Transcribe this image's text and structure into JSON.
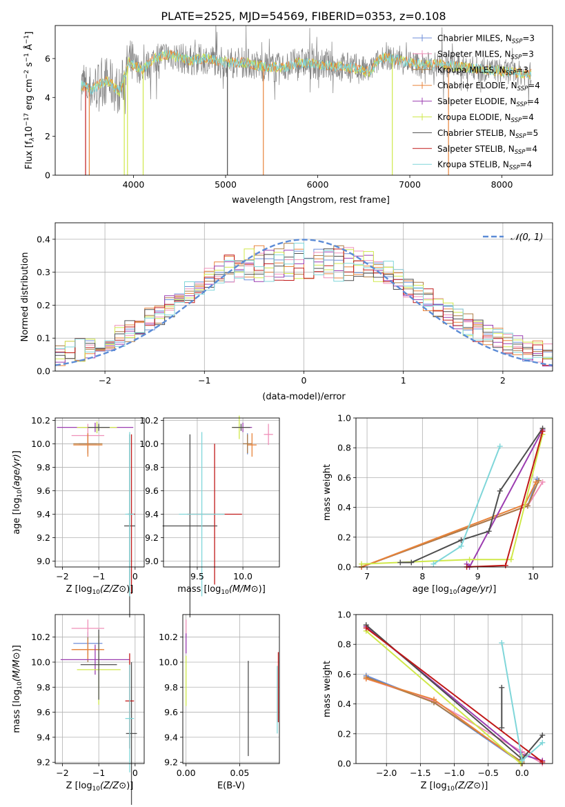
{
  "figure": {
    "title": "PLATE=2525, MJD=54569, FIBERID=0353, z=0.108"
  },
  "colors": {
    "chabrier_miles": "#6c8ed9",
    "salpeter_miles": "#ef8fb8",
    "kroupa_miles": "#ad7c46",
    "chabrier_elodie": "#e8833a",
    "salpeter_elodie": "#9b3cb0",
    "kroupa_elodie": "#cfe84a",
    "chabrier_stelib": "#4d4d4d",
    "salpeter_stelib": "#c01818",
    "kroupa_stelib": "#7fd6d9",
    "data": "#808080",
    "normal": "#5b8bd6"
  },
  "legend": [
    {
      "label": "Chabrier MILES, N",
      "sub": "SSP",
      "eq": "=3",
      "color_key": "chabrier_miles"
    },
    {
      "label": "Salpeter MILES, N",
      "sub": "SSP",
      "eq": "=3",
      "color_key": "salpeter_miles"
    },
    {
      "label": "Kroupa MILES, N",
      "sub": "SSP",
      "eq": "=3",
      "color_key": "kroupa_miles"
    },
    {
      "label": "Chabrier ELODIE, N",
      "sub": "SSP",
      "eq": "=4",
      "color_key": "chabrier_elodie"
    },
    {
      "label": "Salpeter ELODIE, N",
      "sub": "SSP",
      "eq": "=4",
      "color_key": "salpeter_elodie"
    },
    {
      "label": "Kroupa ELODIE, N",
      "sub": "SSP",
      "eq": "=4",
      "color_key": "kroupa_elodie"
    },
    {
      "label": "Chabrier STELIB, N",
      "sub": "SSP",
      "eq": "=5",
      "color_key": "chabrier_stelib"
    },
    {
      "label": "Salpeter STELIB, N",
      "sub": "SSP",
      "eq": "=4",
      "color_key": "salpeter_stelib"
    },
    {
      "label": "Kroupa STELIB, N",
      "sub": "SSP",
      "eq": "=4",
      "color_key": "kroupa_stelib"
    }
  ],
  "chart_data": [
    {
      "id": "spectrum",
      "type": "line",
      "xlabel": "wavelength [Angstrom, rest frame]",
      "ylabel": "Flux [f",
      "xlim": [
        3150,
        8550
      ],
      "ylim": [
        0,
        7.7
      ],
      "xticks": [
        4000,
        5000,
        6000,
        7000,
        8000
      ],
      "yticks": [
        0,
        2,
        4,
        6
      ],
      "grid": false,
      "legend_position": "right",
      "continuum_x": [
        3450,
        3550,
        3700,
        3850,
        3950,
        4100,
        4250,
        4400,
        4600,
        4800,
        5000,
        5200,
        5400,
        5600,
        5800,
        6000,
        6200,
        6400,
        6550,
        6700,
        6900,
        7100,
        7300,
        7500,
        7700,
        7900,
        8100,
        8300
      ],
      "continuum_y": [
        4.6,
        4.4,
        4.9,
        4.3,
        5.8,
        5.4,
        6.1,
        6.2,
        5.9,
        6.0,
        5.8,
        5.8,
        5.6,
        5.5,
        5.8,
        5.7,
        5.6,
        5.5,
        5.3,
        6.1,
        5.9,
        5.7,
        5.7,
        5.6,
        5.5,
        5.4,
        5.3,
        5.2
      ],
      "deep_lines_x": [
        3480,
        3520,
        3900,
        3935,
        4105,
        5020,
        5410,
        6810,
        7420
      ]
    },
    {
      "id": "residuals",
      "type": "histogram",
      "xlabel": "(data-model)/error",
      "ylabel": "Normed distribution",
      "xlim": [
        -2.5,
        2.5
      ],
      "ylim": [
        0,
        0.45
      ],
      "xticks": [
        -2,
        -1,
        0,
        1,
        2
      ],
      "yticks": [
        0,
        0.1,
        0.2,
        0.3,
        0.4
      ],
      "grid": true,
      "legend_position": "top-right",
      "legend": "𝒩(0, 1)",
      "bin_width": 0.1
    },
    {
      "id": "age_vs_z",
      "type": "errorbar",
      "xlabel": "Z [log",
      "ylabel": "age  [log",
      "xlim": [
        -2.2,
        0.25
      ],
      "ylim": [
        8.95,
        10.22
      ],
      "xticks": [
        -2,
        -1,
        0
      ],
      "yticks": [
        9.0,
        9.2,
        9.4,
        9.6,
        9.8,
        10.0,
        10.2
      ],
      "grid": true,
      "points": [
        {
          "c": "chabrier_miles",
          "x": -1.3,
          "y": 10.0,
          "xerr": 0.25,
          "yerr": 0.09
        },
        {
          "c": "salpeter_miles",
          "x": -1.3,
          "y": 10.07,
          "xerr": 0.45,
          "yerr": 0.1
        },
        {
          "c": "kroupa_miles",
          "x": -1.3,
          "y": 10.0,
          "xerr": 0.4,
          "yerr": 0.08
        },
        {
          "c": "chabrier_elodie",
          "x": -1.3,
          "y": 9.99,
          "xerr": 0.4,
          "yerr": 0.1
        },
        {
          "c": "salpeter_elodie",
          "x": -1.1,
          "y": 10.14,
          "xerr": 1.05,
          "yerr": 0.04
        },
        {
          "c": "kroupa_elodie",
          "x": -1.05,
          "y": 10.14,
          "xerr": 0.55,
          "yerr": 0.05
        },
        {
          "c": "chabrier_stelib",
          "x": -0.15,
          "y": 9.3,
          "xerr": 0.15,
          "yerr": 0.78
        },
        {
          "c": "salpeter_stelib",
          "x": -0.1,
          "y": 9.4,
          "xerr": 0.1,
          "yerr": 0.68
        },
        {
          "c": "kroupa_stelib",
          "x": -0.15,
          "y": 9.4,
          "xerr": 0.12,
          "yerr": 0.7
        },
        {
          "c": "chabrier_stelib",
          "x": -1.0,
          "y": 10.14,
          "xerr": 0.3,
          "yerr": 0.03
        }
      ]
    },
    {
      "id": "age_vs_mass",
      "type": "errorbar",
      "xlabel": "mass [log",
      "ylabel": "",
      "xlim": [
        9.13,
        10.4
      ],
      "ylim": [
        8.95,
        10.22
      ],
      "xticks": [
        9.5,
        10.0
      ],
      "yticks": [
        9.0,
        9.2,
        9.4,
        9.6,
        9.8,
        10.0,
        10.2
      ],
      "grid": true,
      "points": [
        {
          "c": "chabrier_miles",
          "x": 10.05,
          "y": 10.0,
          "xerr": 0.05,
          "yerr": 0.09
        },
        {
          "c": "salpeter_miles",
          "x": 10.28,
          "y": 10.08,
          "xerr": 0.05,
          "yerr": 0.09
        },
        {
          "c": "kroupa_miles",
          "x": 10.05,
          "y": 10.0,
          "xerr": 0.05,
          "yerr": 0.08
        },
        {
          "c": "chabrier_elodie",
          "x": 10.1,
          "y": 9.99,
          "xerr": 0.05,
          "yerr": 0.1
        },
        {
          "c": "salpeter_elodie",
          "x": 10.0,
          "y": 10.14,
          "xerr": 0.1,
          "yerr": 0.04
        },
        {
          "c": "kroupa_elodie",
          "x": 9.96,
          "y": 10.14,
          "xerr": 0.08,
          "yerr": 0.1
        },
        {
          "c": "chabrier_stelib",
          "x": 9.42,
          "y": 9.3,
          "xerr": 0.3,
          "yerr": 0.78
        },
        {
          "c": "salpeter_stelib",
          "x": 9.69,
          "y": 9.4,
          "xerr": 0.3,
          "yerr": 0.6
        },
        {
          "c": "kroupa_stelib",
          "x": 9.55,
          "y": 9.4,
          "xerr": 0.25,
          "yerr": 0.7
        },
        {
          "c": "chabrier_stelib",
          "x": 9.98,
          "y": 10.14,
          "xerr": 0.1,
          "yerr": 0.03
        }
      ]
    },
    {
      "id": "weight_vs_age",
      "type": "line",
      "xlabel": "age  [log",
      "ylabel": "mass weight",
      "xlim": [
        6.8,
        10.35
      ],
      "ylim": [
        0,
        1.0
      ],
      "xticks": [
        7,
        8,
        9,
        10
      ],
      "yticks": [
        0.0,
        0.2,
        0.4,
        0.6,
        0.8,
        1.0
      ],
      "grid": true,
      "series": [
        {
          "c": "chabrier_miles",
          "x": [
            6.9,
            9.9,
            10.07
          ],
          "y": [
            0.0,
            0.41,
            0.59
          ]
        },
        {
          "c": "salpeter_miles",
          "x": [
            6.9,
            9.9,
            10.17
          ],
          "y": [
            0.0,
            0.41,
            0.57
          ]
        },
        {
          "c": "kroupa_miles",
          "x": [
            6.9,
            9.9,
            10.1
          ],
          "y": [
            0.0,
            0.41,
            0.58
          ]
        },
        {
          "c": "chabrier_elodie",
          "x": [
            6.9,
            9.85,
            10.05
          ],
          "y": [
            0.0,
            0.42,
            0.57
          ]
        },
        {
          "c": "salpeter_elodie",
          "x": [
            8.8,
            8.85,
            10.17
          ],
          "y": [
            0.02,
            0.0,
            0.92
          ]
        },
        {
          "c": "kroupa_elodie",
          "x": [
            6.9,
            8.85,
            9.6,
            10.17
          ],
          "y": [
            0.02,
            0.05,
            0.05,
            0.89
          ]
        },
        {
          "c": "chabrier_stelib",
          "x": [
            7.6,
            7.8,
            8.7,
            9.2,
            9.4,
            10.17
          ],
          "y": [
            0.03,
            0.03,
            0.18,
            0.24,
            0.51,
            0.93
          ]
        },
        {
          "c": "salpeter_stelib",
          "x": [
            8.8,
            9.5,
            10.17
          ],
          "y": [
            0.0,
            0.01,
            0.91
          ]
        },
        {
          "c": "kroupa_stelib",
          "x": [
            8.2,
            8.7,
            9.4
          ],
          "y": [
            0.02,
            0.14,
            0.81
          ]
        }
      ]
    },
    {
      "id": "mass_vs_z",
      "type": "errorbar",
      "xlabel": "Z [log",
      "ylabel": "mass [log",
      "xlim": [
        -2.2,
        0.25
      ],
      "ylim": [
        9.19,
        10.38
      ],
      "xticks": [
        -2,
        -1,
        0
      ],
      "yticks": [
        9.2,
        9.4,
        9.6,
        9.8,
        10.0,
        10.2
      ],
      "grid": true,
      "points": [
        {
          "c": "chabrier_miles",
          "x": -1.3,
          "y": 10.15,
          "xerr": 0.4,
          "yerr": 0.09
        },
        {
          "c": "salpeter_miles",
          "x": -1.3,
          "y": 10.27,
          "xerr": 0.45,
          "yerr": 0.07
        },
        {
          "c": "kroupa_miles",
          "x": -1.3,
          "y": 10.1,
          "xerr": 0.4,
          "yerr": 0.1
        },
        {
          "c": "chabrier_elodie",
          "x": -1.3,
          "y": 10.1,
          "xerr": 0.45,
          "yerr": 0.08
        },
        {
          "c": "salpeter_elodie",
          "x": -1.1,
          "y": 10.02,
          "xerr": 0.95,
          "yerr": 0.12
        },
        {
          "c": "kroupa_elodie",
          "x": -1.0,
          "y": 9.94,
          "xerr": 0.6,
          "yerr": 0.28
        },
        {
          "c": "chabrier_stelib",
          "x": -1.0,
          "y": 9.98,
          "xerr": 0.5,
          "yerr": 0.28
        },
        {
          "c": "chabrier_stelib",
          "x": -0.1,
          "y": 9.43,
          "xerr": 0.15,
          "yerr": 0.57
        },
        {
          "c": "salpeter_stelib",
          "x": -0.15,
          "y": 9.69,
          "xerr": 0.12,
          "yerr": 0.38
        },
        {
          "c": "kroupa_stelib",
          "x": -0.15,
          "y": 9.55,
          "xerr": 0.12,
          "yerr": 0.43
        }
      ]
    },
    {
      "id": "mass_vs_ebv",
      "type": "errorbar",
      "xlabel": "E(B-V)",
      "ylabel": "",
      "xlim": [
        -0.003,
        0.087
      ],
      "ylim": [
        9.19,
        10.38
      ],
      "xticks": [
        0.0,
        0.05
      ],
      "yticks": [
        9.2,
        9.4,
        9.6,
        9.8,
        10.0,
        10.2
      ],
      "grid": true,
      "points": [
        {
          "c": "salpeter_miles",
          "x": 0.0,
          "y": 10.27,
          "xerr": 0,
          "yerr": 0.07
        },
        {
          "c": "salpeter_elodie",
          "x": 0.0,
          "y": 10.15,
          "xerr": 0,
          "yerr": 0.08
        },
        {
          "c": "kroupa_elodie",
          "x": 0.0,
          "y": 9.85,
          "xerr": 0,
          "yerr": 0.2
        },
        {
          "c": "chabrier_stelib",
          "x": 0.058,
          "y": 9.63,
          "xerr": 0,
          "yerr": 0.38
        },
        {
          "c": "salpeter_stelib",
          "x": 0.086,
          "y": 9.8,
          "xerr": 0,
          "yerr": 0.28
        },
        {
          "c": "kroupa_stelib",
          "x": 0.085,
          "y": 9.7,
          "xerr": 0,
          "yerr": 0.27
        }
      ]
    },
    {
      "id": "weight_vs_z",
      "type": "line",
      "xlabel": "Z [log",
      "ylabel": "mass weight",
      "xlim": [
        -2.45,
        0.45
      ],
      "ylim": [
        0,
        1.0
      ],
      "xticks": [
        -2.0,
        -1.5,
        -1.0,
        -0.5,
        0.0
      ],
      "yticks": [
        0.0,
        0.2,
        0.4,
        0.6,
        0.8,
        1.0
      ],
      "grid": true,
      "series": [
        {
          "c": "chabrier_miles",
          "x": [
            -2.3,
            -1.3,
            0.0
          ],
          "y": [
            0.59,
            0.41,
            0.0
          ]
        },
        {
          "c": "salpeter_miles",
          "x": [
            -2.3,
            -1.3,
            0.0,
            0.3
          ],
          "y": [
            0.57,
            0.42,
            0.08,
            0.0
          ]
        },
        {
          "c": "kroupa_miles",
          "x": [
            -2.3,
            -1.3,
            0.0
          ],
          "y": [
            0.58,
            0.41,
            0.01
          ]
        },
        {
          "c": "chabrier_elodie",
          "x": [
            -2.3,
            -1.3,
            0.0
          ],
          "y": [
            0.57,
            0.43,
            0.0
          ]
        },
        {
          "c": "salpeter_elodie",
          "x": [
            -2.3,
            0.0,
            0.3
          ],
          "y": [
            0.92,
            0.06,
            0.02
          ]
        },
        {
          "c": "kroupa_elodie",
          "x": [
            -2.3,
            -0.02,
            0.0
          ],
          "y": [
            0.89,
            0.0,
            0.05
          ]
        },
        {
          "c": "chabrier_stelib",
          "x": [
            -2.3,
            0.0,
            0.3
          ],
          "y": [
            0.93,
            0.03,
            0.19
          ]
        },
        {
          "c": "chabrier_stelib",
          "x": [
            -0.3,
            -0.3
          ],
          "y": [
            0.24,
            0.51
          ]
        },
        {
          "c": "salpeter_stelib",
          "x": [
            -2.3,
            0.3
          ],
          "y": [
            0.91,
            0.01
          ]
        },
        {
          "c": "kroupa_stelib",
          "x": [
            -0.3,
            0.0,
            0.3
          ],
          "y": [
            0.81,
            0.02,
            0.14
          ]
        }
      ]
    }
  ]
}
